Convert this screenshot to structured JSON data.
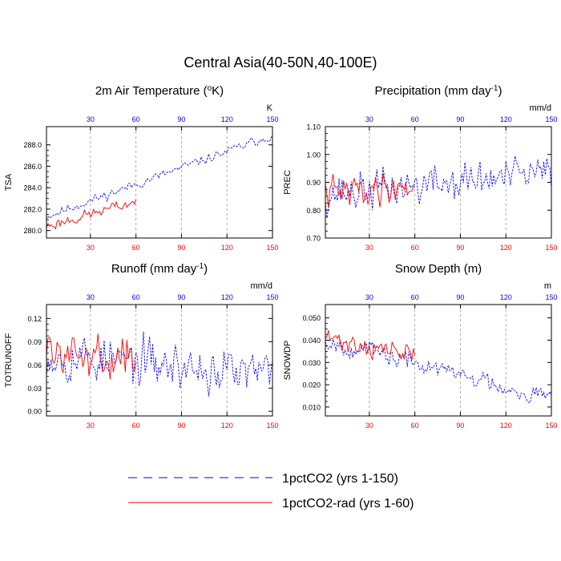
{
  "figure": {
    "title": "Central Asia(40-50N,40-100E)",
    "legend": [
      {
        "label": "1pctCO2 (yrs 1-150)",
        "color": "#0000ff",
        "style": "dashed"
      },
      {
        "label": "1pctCO2-rad (yrs 1-60)",
        "color": "#ff0000",
        "style": "solid"
      }
    ],
    "top_axis_color": "#0000ff",
    "bottom_axis_color": "#ff0000"
  },
  "chart_data": [
    {
      "type": "line",
      "title": "2m Air Temperature (",
      "title_sup_pre": "o",
      "title_mid": "K",
      "title_sup_post": "",
      "title_end": ")",
      "ylabel": "TSA",
      "units": "K",
      "xlim": [
        1,
        150
      ],
      "ylim": [
        279.3,
        289.7
      ],
      "yticks": [
        280.0,
        282.0,
        284.0,
        286.0,
        288.0
      ],
      "ytick_labels": [
        "280.0",
        "282.0",
        "284.0",
        "286.0",
        "288.0"
      ],
      "xticks": [
        30,
        60,
        90,
        120,
        150
      ],
      "xtick_labels": [
        "30",
        "60",
        "90",
        "120",
        "150"
      ],
      "series": [
        {
          "name": "1pctCO2 (yrs 1-150)",
          "years": [
            1,
            150
          ],
          "start": 281.3,
          "end": 288.9,
          "amp": 0.45,
          "seed": 11
        },
        {
          "name": "1pctCO2-rad (yrs 1-60)",
          "years": [
            1,
            60
          ],
          "start": 280.4,
          "end": 282.7,
          "amp": 0.55,
          "seed": 23
        }
      ]
    },
    {
      "type": "line",
      "title": "Precipitation (mm day",
      "title_sup_pre": "",
      "title_mid": "",
      "title_sup_post": "-1",
      "title_end": ")",
      "ylabel": "PREC",
      "units": "mm/d",
      "xlim": [
        1,
        150
      ],
      "ylim": [
        0.7,
        1.1
      ],
      "yticks": [
        0.7,
        0.8,
        0.9,
        1.0,
        1.1
      ],
      "ytick_labels": [
        "0.70",
        "0.80",
        "0.90",
        "1.00",
        "1.10"
      ],
      "xticks": [
        30,
        60,
        90,
        120,
        150
      ],
      "xtick_labels": [
        "30",
        "60",
        "90",
        "120",
        "150"
      ],
      "series": [
        {
          "name": "1pctCO2 (yrs 1-150)",
          "years": [
            1,
            150
          ],
          "start": 0.86,
          "end": 0.93,
          "amp": 0.075,
          "seed": 37
        },
        {
          "name": "1pctCO2-rad (yrs 1-60)",
          "years": [
            1,
            60
          ],
          "start": 0.86,
          "end": 0.89,
          "amp": 0.06,
          "seed": 41
        }
      ]
    },
    {
      "type": "line",
      "title": "Runoff (mm day",
      "title_sup_pre": "",
      "title_mid": "",
      "title_sup_post": "-1",
      "title_end": ")",
      "ylabel": "TOTRUNOFF",
      "units": "mm/d",
      "xlim": [
        1,
        150
      ],
      "ylim": [
        -0.006,
        0.138
      ],
      "yticks": [
        0.0,
        0.03,
        0.06,
        0.09,
        0.12
      ],
      "ytick_labels": [
        "0.00",
        "0.03",
        "0.06",
        "0.09",
        "0.12"
      ],
      "xticks": [
        30,
        60,
        90,
        120,
        150
      ],
      "xtick_labels": [
        "30",
        "60",
        "90",
        "120",
        "150"
      ],
      "series": [
        {
          "name": "1pctCO2 (yrs 1-150)",
          "years": [
            1,
            150
          ],
          "start": 0.075,
          "end": 0.045,
          "amp": 0.032,
          "seed": 53
        },
        {
          "name": "1pctCO2-rad (yrs 1-60)",
          "years": [
            1,
            60
          ],
          "start": 0.08,
          "end": 0.065,
          "amp": 0.025,
          "seed": 59
        }
      ]
    },
    {
      "type": "line",
      "title": "Snow Depth (m)",
      "title_sup_pre": "",
      "title_mid": "",
      "title_sup_post": "",
      "title_end": "",
      "ylabel": "SNOWDP",
      "units": "m",
      "xlim": [
        1,
        150
      ],
      "ylim": [
        0.006,
        0.056
      ],
      "yticks": [
        0.01,
        0.02,
        0.03,
        0.04,
        0.05
      ],
      "ytick_labels": [
        "0.010",
        "0.020",
        "0.030",
        "0.040",
        "0.050"
      ],
      "xticks": [
        30,
        60,
        90,
        120,
        150
      ],
      "xtick_labels": [
        "30",
        "60",
        "90",
        "120",
        "150"
      ],
      "series": [
        {
          "name": "1pctCO2 (yrs 1-150)",
          "years": [
            1,
            150
          ],
          "start": 0.04,
          "end": 0.014,
          "amp": 0.0045,
          "seed": 67
        },
        {
          "name": "1pctCO2-rad (yrs 1-60)",
          "years": [
            1,
            60
          ],
          "start": 0.041,
          "end": 0.033,
          "amp": 0.005,
          "seed": 71
        }
      ]
    }
  ]
}
